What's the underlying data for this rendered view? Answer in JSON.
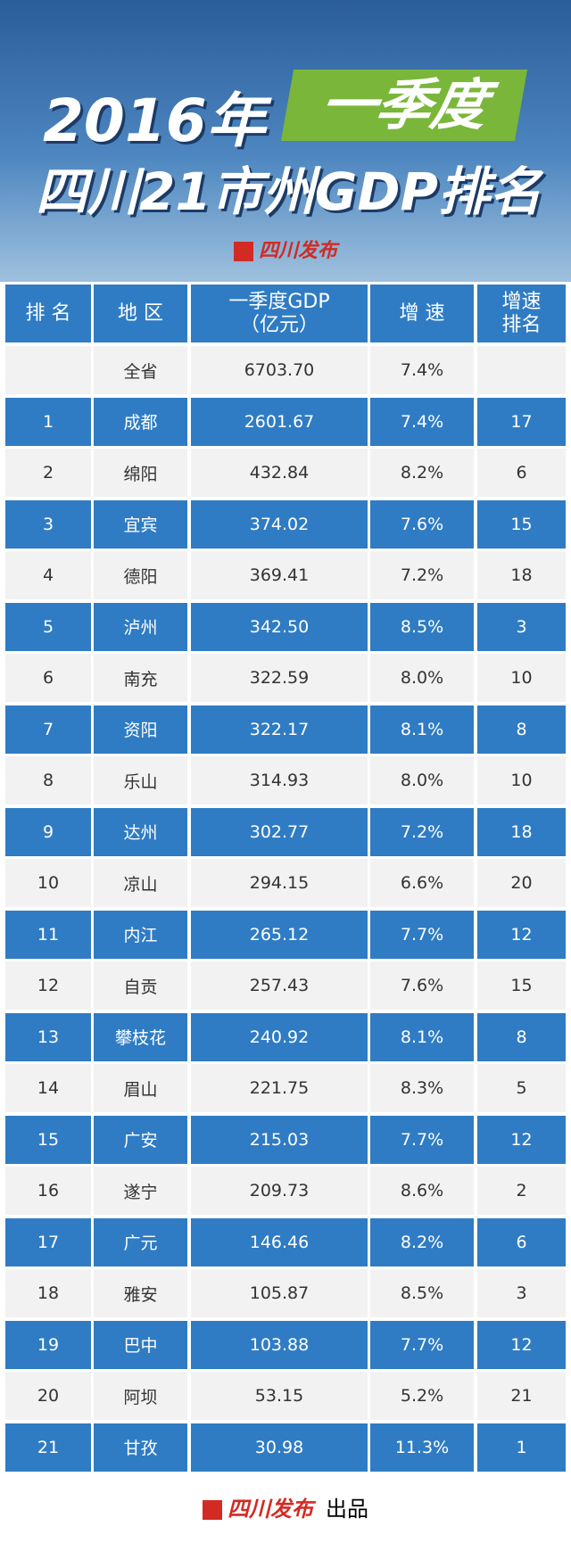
{
  "banner": {
    "year": "2016年",
    "quarter": "一季度",
    "title": "四川21市州GDP排名",
    "logo": "四川发布"
  },
  "table": {
    "headers": [
      "排 名",
      "地 区",
      "一季度GDP",
      "增 速",
      "增速"
    ],
    "header_sublines": {
      "gdp": "（亿元）",
      "growth_rank": "排名"
    },
    "total": {
      "region": "全省",
      "gdp": "6703.70",
      "growth": "7.4%"
    },
    "rows": [
      [
        "1",
        "成都",
        "2601.67",
        "7.4%",
        "17"
      ],
      [
        "2",
        "绵阳",
        "432.84",
        "8.2%",
        "6"
      ],
      [
        "3",
        "宜宾",
        "374.02",
        "7.6%",
        "15"
      ],
      [
        "4",
        "德阳",
        "369.41",
        "7.2%",
        "18"
      ],
      [
        "5",
        "泸州",
        "342.50",
        "8.5%",
        "3"
      ],
      [
        "6",
        "南充",
        "322.59",
        "8.0%",
        "10"
      ],
      [
        "7",
        "资阳",
        "322.17",
        "8.1%",
        "8"
      ],
      [
        "8",
        "乐山",
        "314.93",
        "8.0%",
        "10"
      ],
      [
        "9",
        "达州",
        "302.77",
        "7.2%",
        "18"
      ],
      [
        "10",
        "凉山",
        "294.15",
        "6.6%",
        "20"
      ],
      [
        "11",
        "内江",
        "265.12",
        "7.7%",
        "12"
      ],
      [
        "12",
        "自贡",
        "257.43",
        "7.6%",
        "15"
      ],
      [
        "13",
        "攀枝花",
        "240.92",
        "8.1%",
        "8"
      ],
      [
        "14",
        "眉山",
        "221.75",
        "8.3%",
        "5"
      ],
      [
        "15",
        "广安",
        "215.03",
        "7.7%",
        "12"
      ],
      [
        "16",
        "遂宁",
        "209.73",
        "8.6%",
        "2"
      ],
      [
        "17",
        "广元",
        "146.46",
        "8.2%",
        "6"
      ],
      [
        "18",
        "雅安",
        "105.87",
        "8.5%",
        "3"
      ],
      [
        "19",
        "巴中",
        "103.88",
        "7.7%",
        "12"
      ],
      [
        "20",
        "阿坝",
        "53.15",
        "5.2%",
        "21"
      ],
      [
        "21",
        "甘孜",
        "30.98",
        "11.3%",
        "1"
      ]
    ]
  },
  "footer": {
    "logo": "四川发布",
    "text": "出品"
  }
}
